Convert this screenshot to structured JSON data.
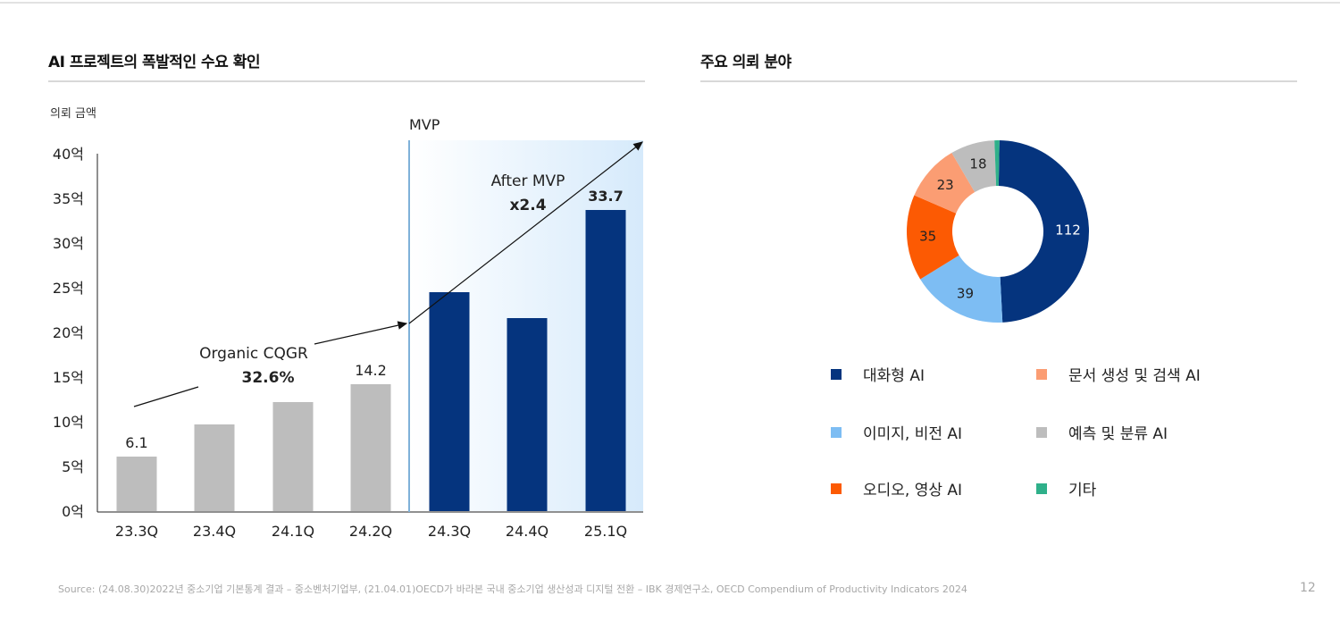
{
  "left_title": "AI 프로젝트의 폭발적인 수요 확인",
  "right_title": "주요 의뢰 분야",
  "chart_data": [
    {
      "type": "bar",
      "ylabel": "의뢰 금액",
      "ylim": [
        0,
        40
      ],
      "yticks": [
        "0억",
        "5억",
        "10억",
        "15억",
        "20억",
        "25억",
        "30억",
        "35억",
        "40억"
      ],
      "categories": [
        "23.3Q",
        "23.4Q",
        "24.1Q",
        "24.2Q",
        "24.3Q",
        "24.4Q",
        "25.1Q"
      ],
      "values": [
        6.1,
        9.7,
        12.2,
        14.2,
        24.5,
        21.6,
        33.7
      ],
      "data_labels": [
        "6.1",
        "",
        "",
        "14.2",
        "",
        "",
        "33.7"
      ],
      "colors": [
        "#bdbdbd",
        "#bdbdbd",
        "#bdbdbd",
        "#bdbdbd",
        "#05347e",
        "#05347e",
        "#05347e"
      ],
      "grid": false,
      "annotations": {
        "mvp": "MVP",
        "organic": "Organic CQGR",
        "organic_value": "32.6%",
        "after": "After MVP",
        "after_value": "x2.4"
      }
    },
    {
      "type": "pie",
      "donut": true,
      "labels": [
        "대화형 AI",
        "이미지, 비전 AI",
        "오디오, 영상 AI",
        "문서 생성 및 검색 AI",
        "예측 및 분류 AI",
        "기타"
      ],
      "values": [
        112,
        39,
        35,
        23,
        18,
        2
      ],
      "data_labels": [
        "112",
        "39",
        "35",
        "23",
        "18",
        ""
      ],
      "colors": [
        "#05347e",
        "#7dbdf3",
        "#fc5a03",
        "#fb9d73",
        "#bdbdbd",
        "#2fb08a"
      ],
      "legend": "bottom"
    }
  ],
  "source": "Source: (24.08.30)2022년 중소기업 기본통계 결과 – 중소벤처기업부, (21.04.01)OECD가 바라본 국내 중소기업 생산성과 디지털 전환 – IBK 경제연구소, OECD Compendium of Productivity Indicators 2024",
  "page": "12"
}
